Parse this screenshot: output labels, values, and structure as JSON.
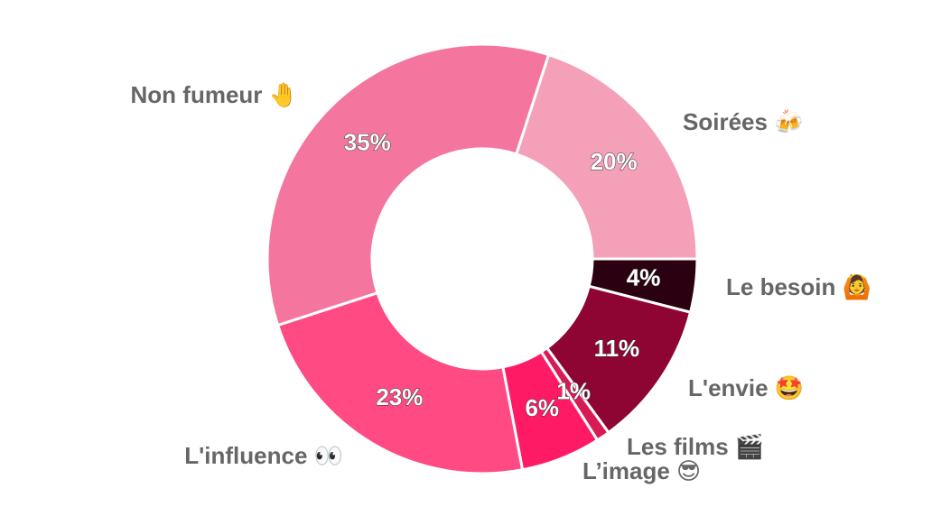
{
  "chart_data": {
    "type": "donut",
    "categories": [
      "Soirées 🍻",
      "Le besoin 🙆",
      "L'envie 🤩",
      "Les films 🎬",
      "L’image 😎",
      "L'influence 👀",
      "Non fumeur 🤚"
    ],
    "values": [
      20,
      4,
      11,
      1,
      6,
      23,
      35
    ],
    "value_labels": [
      "20%",
      "4%",
      "11%",
      "1%",
      "6%",
      "23%",
      "35%"
    ],
    "colors": [
      "#f4a0b9",
      "#2b0010",
      "#8e0533",
      "#d81b55",
      "#ff1a66",
      "#ff4a84",
      "#f4769f"
    ]
  }
}
